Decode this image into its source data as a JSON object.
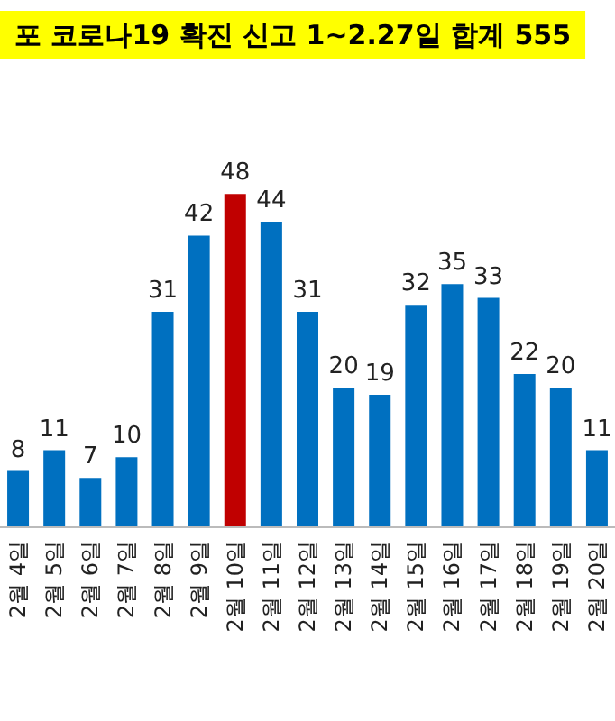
{
  "chart_data": {
    "type": "bar",
    "title": "포 코로나19 확진 신고 1~2.27일 합계 555",
    "categories": [
      "2월 4일",
      "2월 5일",
      "2월 6일",
      "2월 7일",
      "2월 8일",
      "2월 9일",
      "2월 10일",
      "2월 11일",
      "2월 12일",
      "2월 13일",
      "2월 14일",
      "2월 15일",
      "2월 16일",
      "2월 17일",
      "2월 18일",
      "2월 19일",
      "2월 20일"
    ],
    "values": [
      8,
      11,
      7,
      10,
      31,
      42,
      48,
      44,
      31,
      20,
      19,
      32,
      35,
      33,
      22,
      20,
      11
    ],
    "colors": [
      "#0070c0",
      "#0070c0",
      "#0070c0",
      "#0070c0",
      "#0070c0",
      "#0070c0",
      "#c00000",
      "#0070c0",
      "#0070c0",
      "#0070c0",
      "#0070c0",
      "#0070c0",
      "#0070c0",
      "#0070c0",
      "#0070c0",
      "#0070c0",
      "#0070c0"
    ],
    "data_labels": true
  }
}
